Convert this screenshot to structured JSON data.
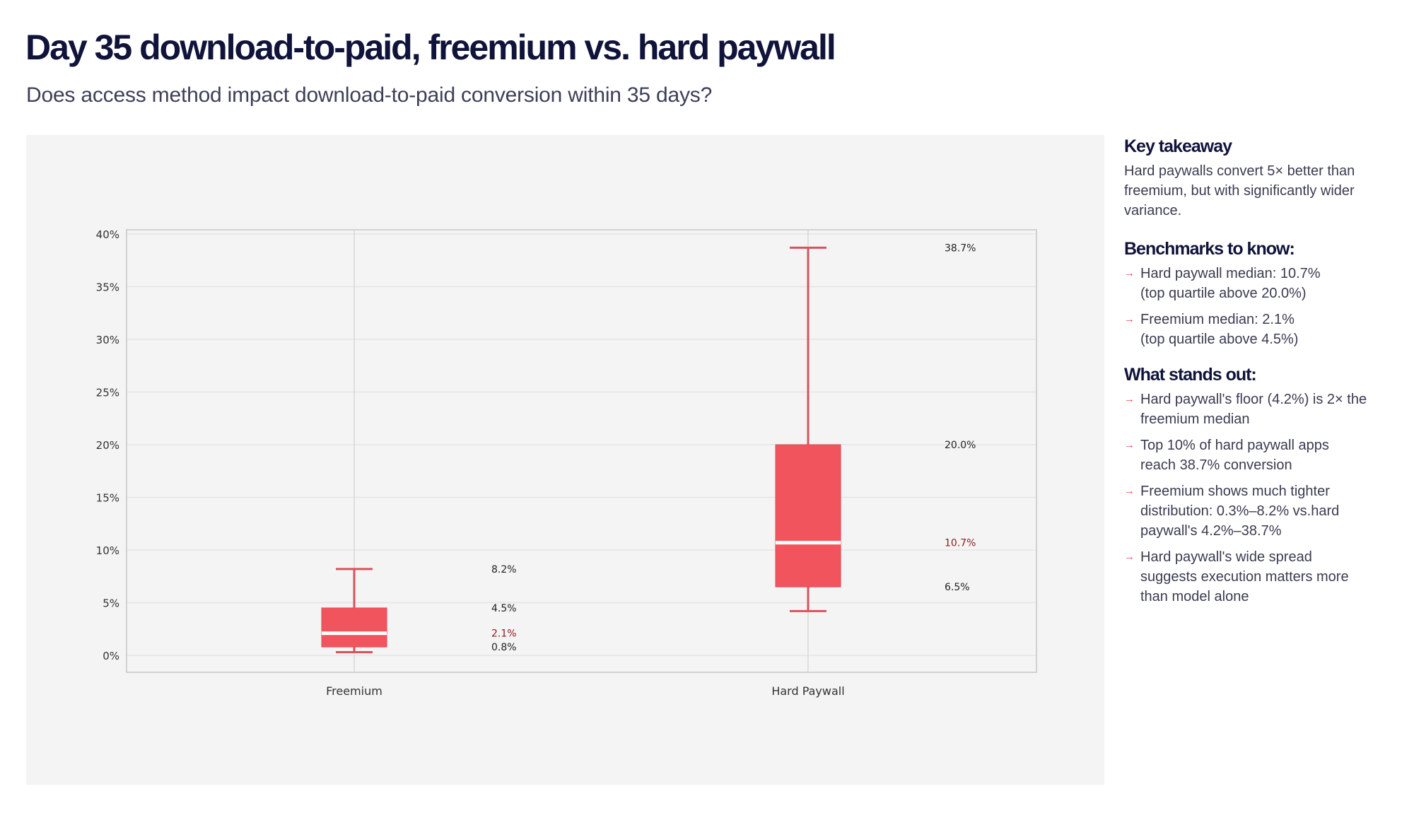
{
  "header": {
    "title": "Day 35 download-to-paid, freemium vs. hard paywall",
    "subtitle": "Does access method impact download-to-paid conversion within 35 days?"
  },
  "colors": {
    "box_fill": "#f2545e",
    "whisker": "#d9525c",
    "median_line": "#ffffff",
    "median_label": "#8b1a1f",
    "value_label": "#222222",
    "grid": "#e4e4e4",
    "frame": "#d2d2d2",
    "panel_bg": "#f4f4f4",
    "arrow": "#e2525c"
  },
  "chart_data": {
    "type": "box",
    "title": "",
    "xlabel": "",
    "ylabel": "",
    "ylim": [
      -1.6,
      41
    ],
    "yticks": [
      0,
      5,
      10,
      15,
      20,
      25,
      30,
      35,
      40
    ],
    "ytick_labels": [
      "0%",
      "5%",
      "10%",
      "15%",
      "20%",
      "25%",
      "30%",
      "35%",
      "40%"
    ],
    "grid": true,
    "categories": [
      "Freemium",
      "Hard Paywall"
    ],
    "series": [
      {
        "name": "Freemium",
        "whisker_low": 0.3,
        "q1": 0.8,
        "median": 2.1,
        "q3": 4.5,
        "whisker_high": 8.2,
        "labels": {
          "whisker_high": "8.2%",
          "q3": "4.5%",
          "median": "2.1%",
          "q1": "0.8%"
        }
      },
      {
        "name": "Hard Paywall",
        "whisker_low": 4.2,
        "q1": 6.5,
        "median": 10.7,
        "q3": 20.0,
        "whisker_high": 38.7,
        "labels": {
          "whisker_high": "38.7%",
          "q3": "20.0%",
          "median": "10.7%",
          "q1": "6.5%"
        }
      }
    ]
  },
  "sidebar": {
    "takeaway": {
      "heading": "Key takeaway",
      "text": "Hard paywalls convert 5× better than freemium, but with significantly wider variance."
    },
    "benchmarks": {
      "heading": "Benchmarks to know:",
      "items": [
        {
          "line1": "Hard paywall median: 10.7%",
          "line2": "(top quartile above 20.0%)"
        },
        {
          "line1": "Freemium median: 2.1%",
          "line2": "(top quartile above 4.5%)"
        }
      ]
    },
    "standout": {
      "heading": "What stands out:",
      "items": [
        {
          "text": "Hard paywall's floor (4.2%) is 2× the freemium median"
        },
        {
          "text": "Top 10% of hard paywall apps reach 38.7% conversion"
        },
        {
          "text": "Freemium shows much tighter distribution: 0.3%–8.2% vs.hard paywall's 4.2%–38.7%"
        },
        {
          "text": "Hard paywall's wide spread suggests execution matters more than model alone"
        }
      ]
    },
    "arrow_icon": "→"
  }
}
